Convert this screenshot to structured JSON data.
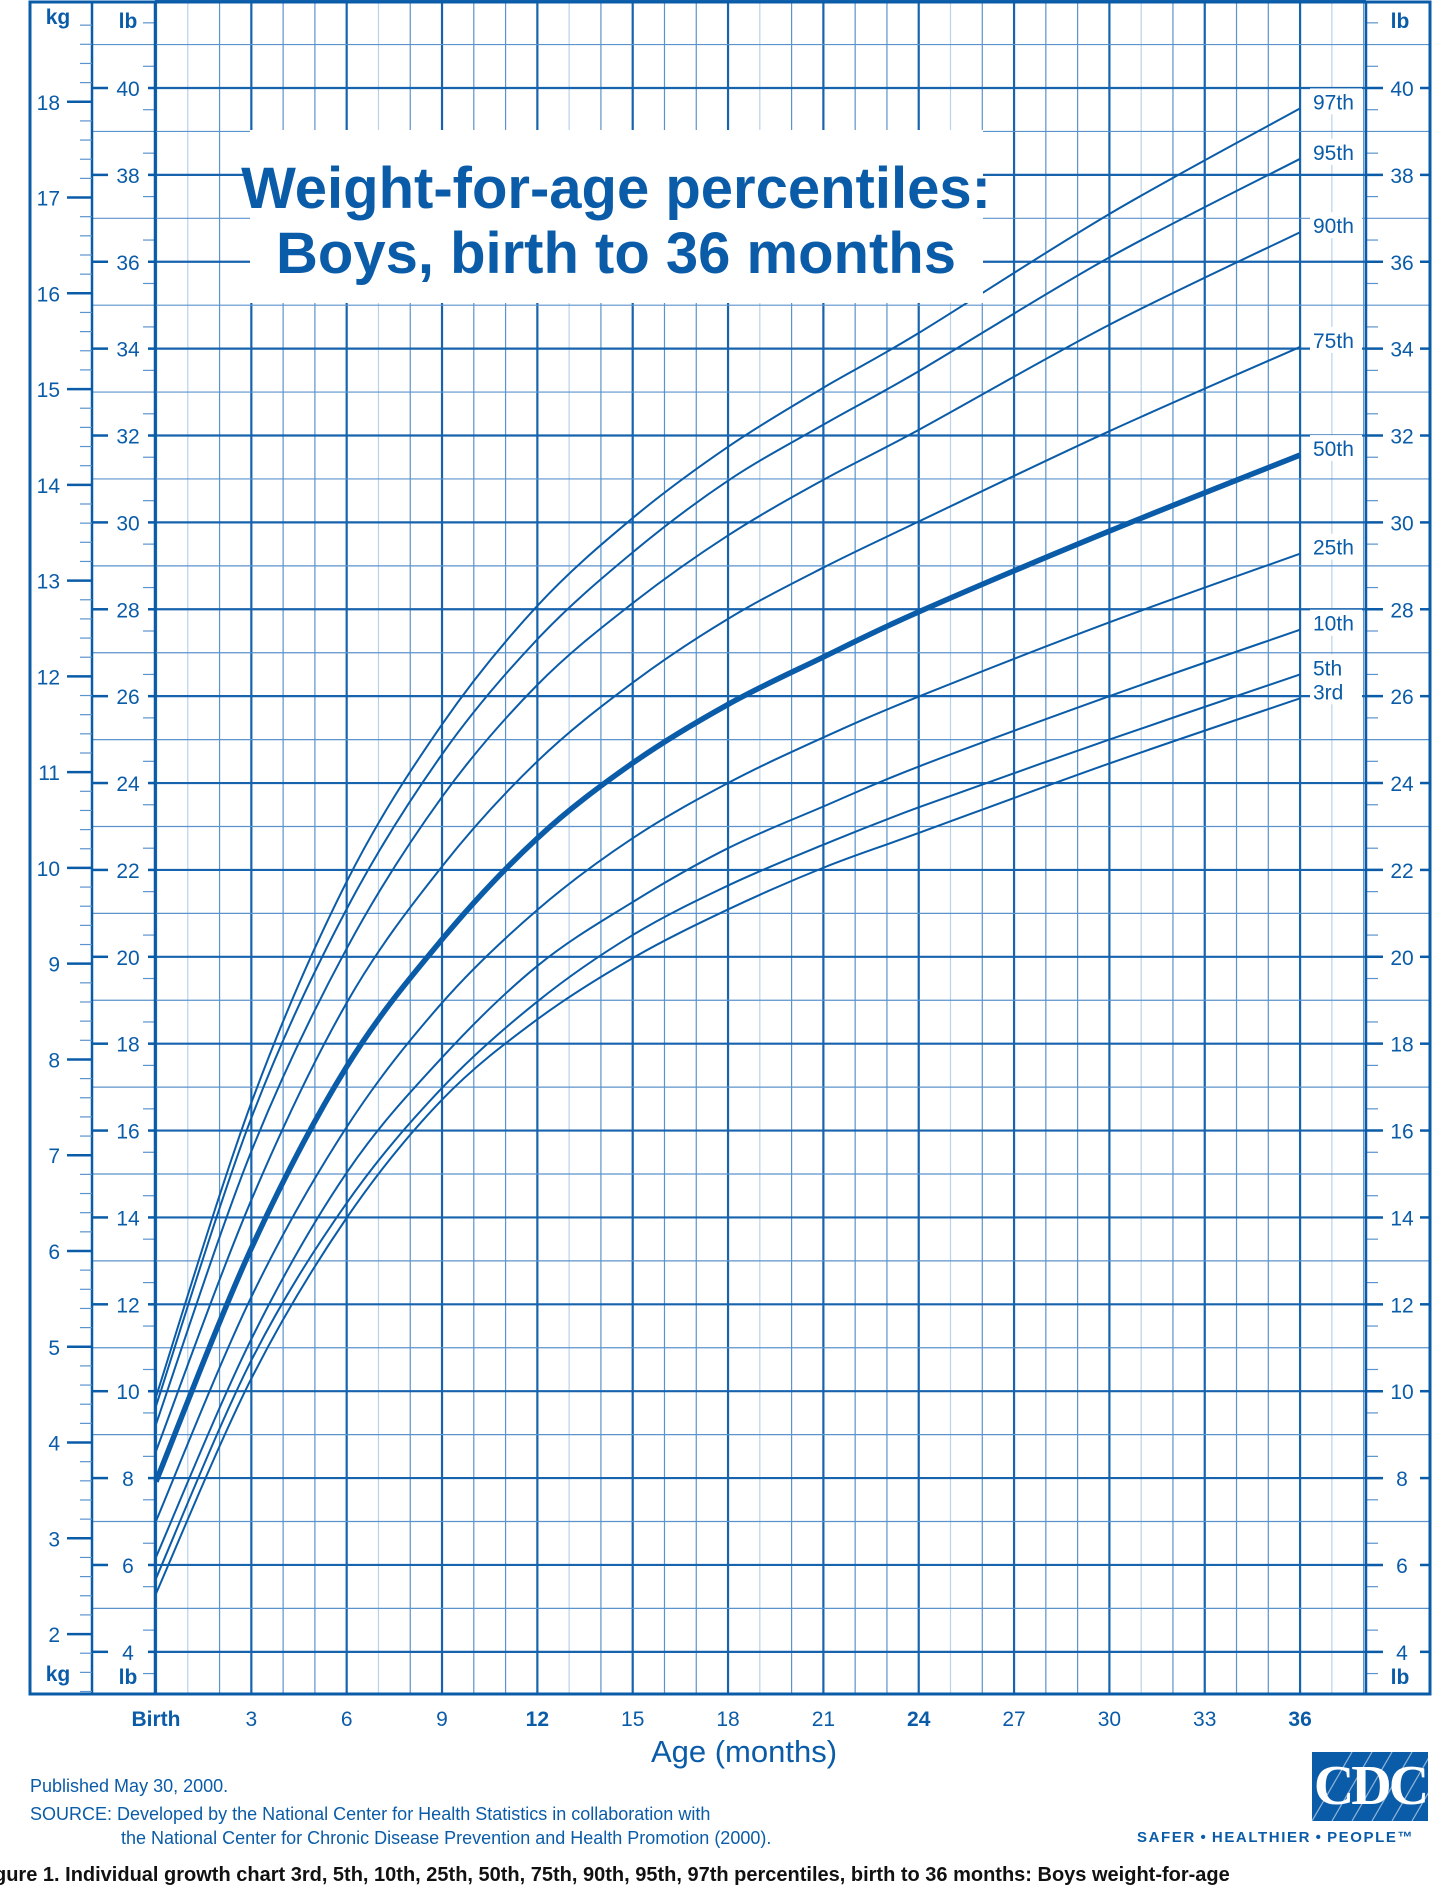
{
  "colors": {
    "ink": "#0b5ca8",
    "grid_dark": "#1763ae",
    "grid_mid": "#5b93cc",
    "grid_pale": "#b8d2ea",
    "caption": "#111111"
  },
  "chart_data": {
    "type": "line",
    "title_line1": "Weight-for-age percentiles:",
    "title_line2": "Boys, birth to 36 months",
    "xlabel": "Age (months)",
    "x_tick_labels": [
      {
        "value": 0,
        "label": "Birth",
        "bold": true
      },
      {
        "value": 3,
        "label": "3",
        "bold": false
      },
      {
        "value": 6,
        "label": "6",
        "bold": false
      },
      {
        "value": 9,
        "label": "9",
        "bold": false
      },
      {
        "value": 12,
        "label": "12",
        "bold": true
      },
      {
        "value": 15,
        "label": "15",
        "bold": false
      },
      {
        "value": 18,
        "label": "18",
        "bold": false
      },
      {
        "value": 21,
        "label": "21",
        "bold": false
      },
      {
        "value": 24,
        "label": "24",
        "bold": true
      },
      {
        "value": 27,
        "label": "27",
        "bold": false
      },
      {
        "value": 30,
        "label": "30",
        "bold": false
      },
      {
        "value": 33,
        "label": "33",
        "bold": false
      },
      {
        "value": 36,
        "label": "36",
        "bold": true
      }
    ],
    "xlim": [
      0,
      38
    ],
    "y_unit_lb": "lb",
    "y_unit_kg": "kg",
    "ylim_lb": [
      3,
      42
    ],
    "y_ticks_lb": [
      4,
      6,
      8,
      10,
      12,
      14,
      16,
      18,
      20,
      22,
      24,
      26,
      28,
      30,
      32,
      34,
      36,
      38,
      40
    ],
    "y_ticks_kg": [
      2,
      3,
      4,
      5,
      6,
      7,
      8,
      9,
      10,
      11,
      12,
      13,
      14,
      15,
      16,
      17,
      18
    ],
    "grid": true,
    "x": [
      0,
      3,
      6,
      9,
      12,
      15,
      18,
      21,
      24,
      30,
      36
    ],
    "series": [
      {
        "name": "97th",
        "values": [
          9.87,
          16.64,
          21.73,
          25.35,
          28.08,
          30.1,
          31.74,
          33.1,
          34.36,
          37.1,
          39.53
        ]
      },
      {
        "name": "95th",
        "values": [
          9.66,
          16.29,
          21.1,
          24.66,
          27.31,
          29.31,
          30.96,
          32.25,
          33.48,
          36.1,
          38.37
        ]
      },
      {
        "name": "90th",
        "values": [
          9.24,
          15.52,
          20.19,
          23.68,
          26.26,
          28.14,
          29.7,
          30.98,
          32.13,
          34.55,
          36.68
        ]
      },
      {
        "name": "75th",
        "values": [
          8.62,
          14.4,
          18.94,
          22.08,
          24.5,
          26.31,
          27.78,
          28.96,
          30.02,
          32.1,
          34.04
        ]
      },
      {
        "name": "50th",
        "values": [
          7.92,
          13.29,
          17.47,
          20.4,
          22.73,
          24.46,
          25.81,
          26.9,
          27.94,
          29.8,
          31.55
        ]
      },
      {
        "name": "25th",
        "values": [
          7.01,
          12.17,
          16.08,
          18.94,
          21.08,
          22.73,
          24.0,
          25.05,
          25.99,
          27.7,
          29.28
        ]
      },
      {
        "name": "10th",
        "values": [
          6.18,
          11.2,
          15.03,
          17.68,
          19.79,
          21.26,
          22.5,
          23.46,
          24.38,
          26.0,
          27.53
        ]
      },
      {
        "name": "5th",
        "values": [
          5.69,
          10.71,
          14.33,
          16.98,
          18.97,
          20.5,
          21.64,
          22.58,
          23.44,
          25.0,
          26.5
        ]
      },
      {
        "name": "3rd",
        "values": [
          5.34,
          10.29,
          13.99,
          16.71,
          18.56,
          19.97,
          21.09,
          22.05,
          22.85,
          24.45,
          25.95
        ]
      }
    ],
    "emphasized_series": "50th"
  },
  "footer": {
    "published": "Published May 30, 2000.",
    "source_line1": "SOURCE: Developed by the National Center for Health Statistics in collaboration with",
    "source_line2": "the National Center for Chronic Disease Prevention and Health Promotion (2000).",
    "logo_text": "CDC",
    "tagline": "SAFER • HEALTHIER • PEOPLE™"
  },
  "caption": "gure 1. Individual growth chart 3rd, 5th, 10th, 25th, 50th, 75th, 90th, 95th, 97th percentiles, birth to 36 months: Boys weight-for-age"
}
